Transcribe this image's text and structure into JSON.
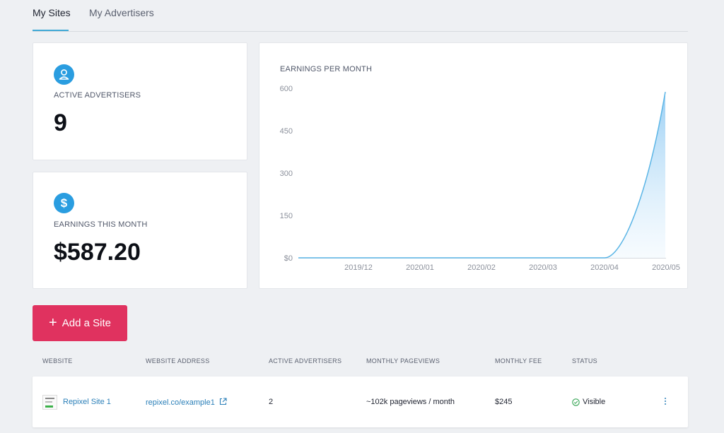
{
  "tabs": [
    {
      "label": "My Sites",
      "active": true
    },
    {
      "label": "My Advertisers",
      "active": false
    }
  ],
  "stats": {
    "advertisers": {
      "icon": "user-icon",
      "label": "ACTIVE ADVERTISERS",
      "value": "9"
    },
    "earnings": {
      "icon": "dollar-icon",
      "label": "EARNINGS THIS MONTH",
      "value": "$587.20"
    }
  },
  "colors": {
    "accent": "#2a9de0",
    "button": "#e0325f",
    "line": "#5bb5e6",
    "link": "#2a7fb8",
    "status_ok": "#35a554"
  },
  "chart_data": {
    "type": "area",
    "title": "EARNINGS PER MONTH",
    "y_ticks": [
      "$0",
      "150",
      "300",
      "450",
      "600"
    ],
    "ylim": [
      0,
      600
    ],
    "categories": [
      "2019/12",
      "2020/01",
      "2020/02",
      "2020/03",
      "2020/04",
      "2020/05"
    ],
    "values": [
      0,
      0,
      0,
      0,
      0,
      587.2
    ],
    "grid": false,
    "legend": "none"
  },
  "add_button": {
    "label": "Add a Site",
    "icon": "plus-icon"
  },
  "table": {
    "headers": [
      "WEBSITE",
      "WEBSITE ADDRESS",
      "ACTIVE ADVERTISERS",
      "MONTHLY PAGEVIEWS",
      "MONTHLY FEE",
      "STATUS"
    ],
    "rows": [
      {
        "website": "Repixel Site 1",
        "address": "repixel.co/example1",
        "advertisers": "2",
        "pageviews": "~102k pageviews / month",
        "fee": "$245",
        "status": "Visible"
      }
    ]
  }
}
